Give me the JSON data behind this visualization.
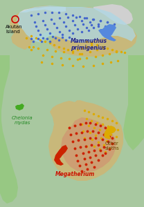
{
  "title": "",
  "background_ocean": "#a8c8a0",
  "land_color": "#c8b87a",
  "mammoth_range_color": "#add8e6",
  "green_turtle_range_color": "#90c878",
  "megatherium_range_color": "#d09070",
  "text_akutan": "Akutan\nIsland",
  "text_mammoth": "Mammuthus\nprimigenius",
  "text_chelonia": "Chelonia\nmydas",
  "text_megatherium": "Megatherium",
  "text_other_sloths": "Other\nsloths",
  "akutan_circle_color": "#cc0000",
  "mammoth_dot_color": "#4466cc",
  "megatherium_dot_color": "#cc2200",
  "sloth_dot_color": "#ddaa00",
  "figsize": [
    2.08,
    3.0
  ],
  "dpi": 100
}
